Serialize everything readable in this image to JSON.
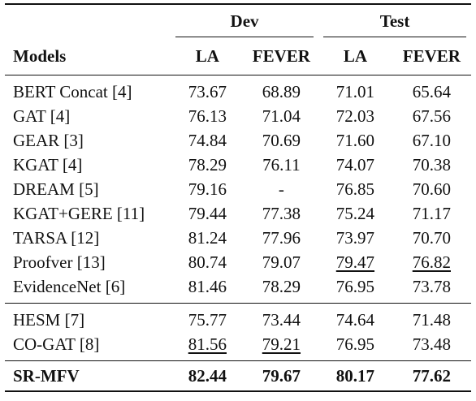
{
  "header": {
    "groups": [
      "Dev",
      "Test"
    ],
    "columns": [
      "Models",
      "LA",
      "FEVER",
      "LA",
      "FEVER"
    ]
  },
  "rows_group1": [
    {
      "model": "BERT Concat [4]",
      "dev_la": "73.67",
      "dev_fever": "68.89",
      "test_la": "71.01",
      "test_fever": "65.64"
    },
    {
      "model": "GAT [4]",
      "dev_la": "76.13",
      "dev_fever": "71.04",
      "test_la": "72.03",
      "test_fever": "67.56"
    },
    {
      "model": "GEAR [3]",
      "dev_la": "74.84",
      "dev_fever": "70.69",
      "test_la": "71.60",
      "test_fever": "67.10"
    },
    {
      "model": "KGAT [4]",
      "dev_la": "78.29",
      "dev_fever": "76.11",
      "test_la": "74.07",
      "test_fever": "70.38"
    },
    {
      "model": "DREAM [5]",
      "dev_la": "79.16",
      "dev_fever": "-",
      "test_la": "76.85",
      "test_fever": "70.60"
    },
    {
      "model": "KGAT+GERE [11]",
      "dev_la": "79.44",
      "dev_fever": "77.38",
      "test_la": "75.24",
      "test_fever": "71.17"
    },
    {
      "model": "TARSA [12]",
      "dev_la": "81.24",
      "dev_fever": "77.96",
      "test_la": "73.97",
      "test_fever": "70.70"
    },
    {
      "model": "Proofver [13]",
      "dev_la": "80.74",
      "dev_fever": "79.07",
      "test_la": "79.47",
      "test_fever": "76.82"
    },
    {
      "model": "EvidenceNet [6]",
      "dev_la": "81.46",
      "dev_fever": "78.29",
      "test_la": "76.95",
      "test_fever": "73.78"
    }
  ],
  "rows_group2": [
    {
      "model": "HESM [7]",
      "dev_la": "75.77",
      "dev_fever": "73.44",
      "test_la": "74.64",
      "test_fever": "71.48"
    },
    {
      "model": "CO-GAT [8]",
      "dev_la": "81.56",
      "dev_fever": "79.21",
      "test_la": "76.95",
      "test_fever": "73.48"
    }
  ],
  "final_row": {
    "model": "SR-MFV",
    "dev_la": "82.44",
    "dev_fever": "79.67",
    "test_la": "80.17",
    "test_fever": "77.62"
  }
}
